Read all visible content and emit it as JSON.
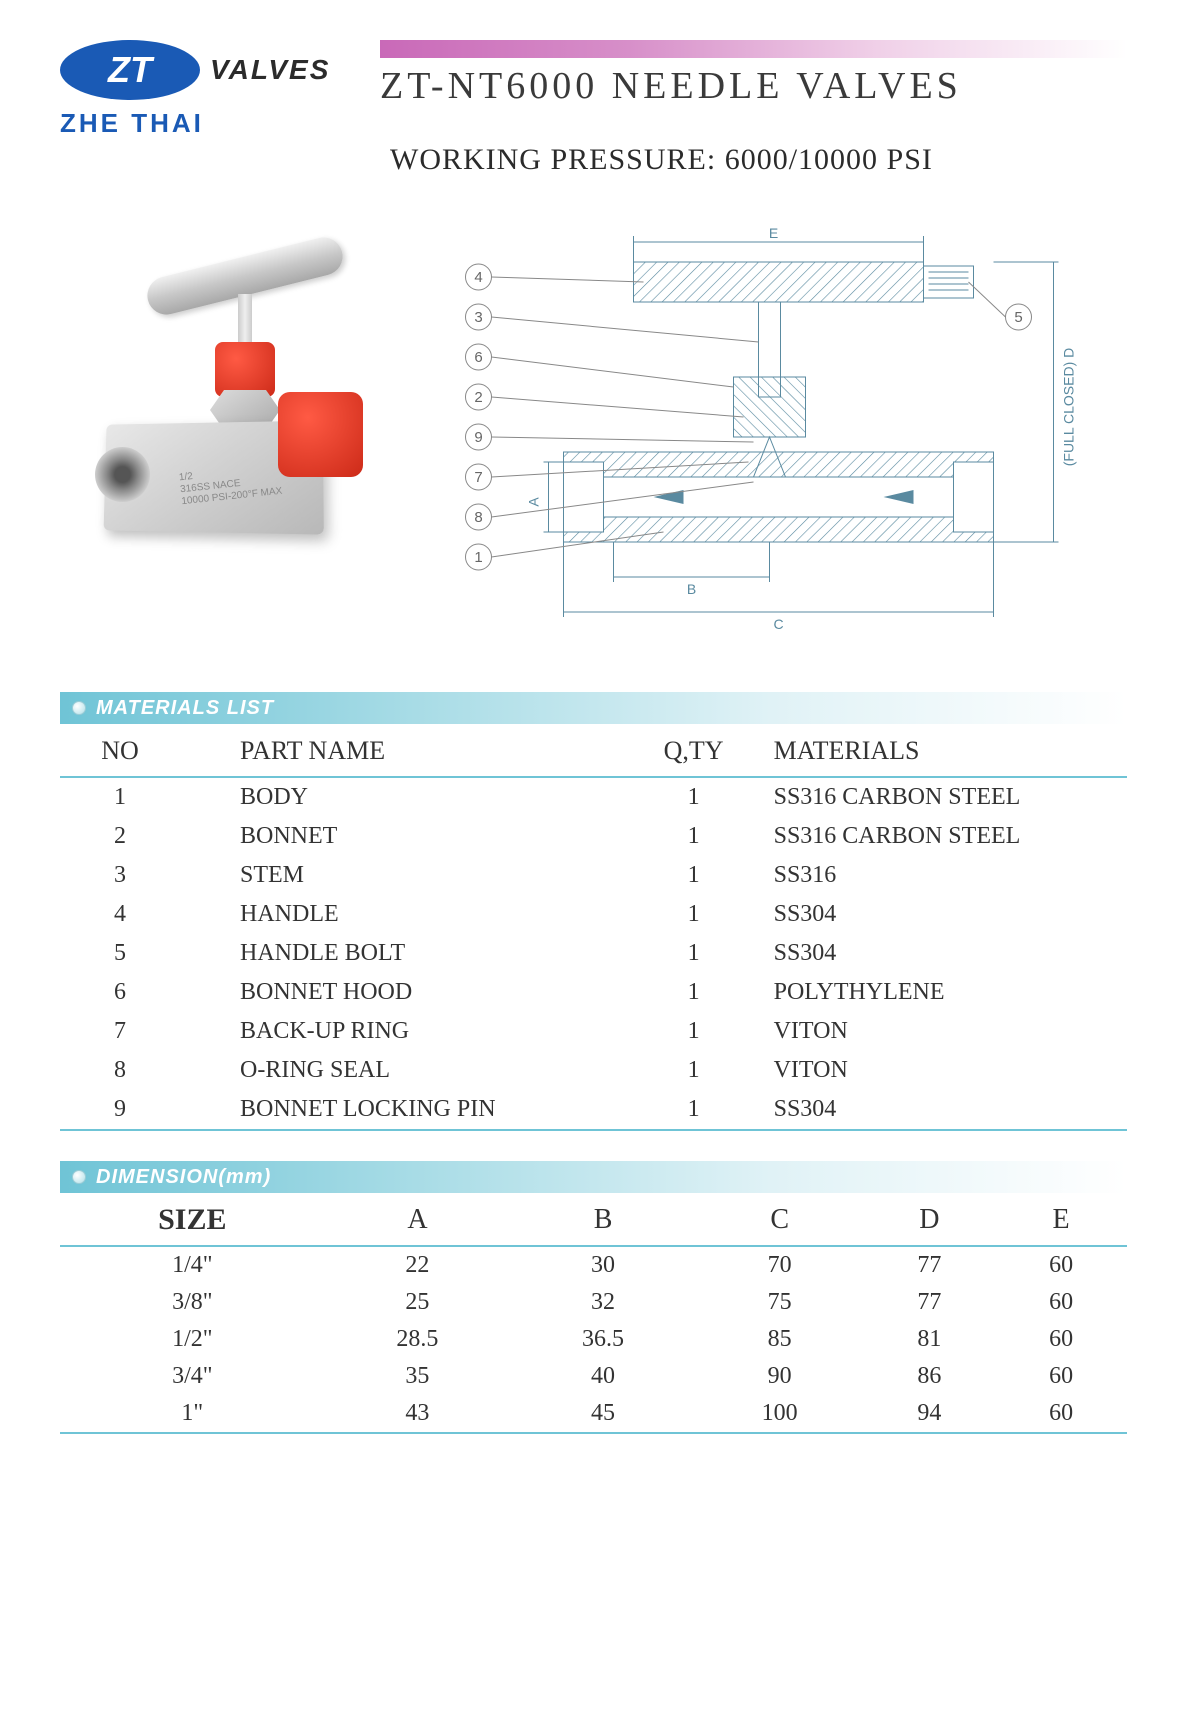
{
  "logo": {
    "mark_text": "ZT",
    "word": "VALVES",
    "company": "ZHE THAI"
  },
  "title": "ZT-NT6000  NEEDLE  VALVES",
  "subtitle": "WORKING  PRESSURE:   6000/10000 PSI",
  "photo_markings": {
    "line1": "1/2",
    "line2": "316SS  NACE",
    "line3": "10000 PSI-200°F MAX"
  },
  "diagram": {
    "callouts": [
      "4",
      "3",
      "6",
      "2",
      "9",
      "7",
      "8",
      "1",
      "5"
    ],
    "dim_labels": [
      "A",
      "B",
      "C",
      "D",
      "E"
    ],
    "d_note": "(FULL CLOSED)  D"
  },
  "materials_section": {
    "header": "MATERIALS LIST",
    "columns": [
      "NO",
      "PART NAME",
      "Q,TY",
      "MATERIALS"
    ],
    "rows": [
      [
        "1",
        "BODY",
        "1",
        "SS316  CARBON STEEL"
      ],
      [
        "2",
        "BONNET",
        "1",
        "SS316  CARBON STEEL"
      ],
      [
        "3",
        "STEM",
        "1",
        "SS316"
      ],
      [
        "4",
        "HANDLE",
        "1",
        "SS304"
      ],
      [
        "5",
        "HANDLE BOLT",
        "1",
        "SS304"
      ],
      [
        "6",
        "BONNET HOOD",
        "1",
        "POLYTHYLENE"
      ],
      [
        "7",
        "BACK-UP RING",
        "1",
        "VITON"
      ],
      [
        "8",
        "O-RING SEAL",
        "1",
        "VITON"
      ],
      [
        "9",
        "BONNET LOCKING PIN",
        "1",
        "SS304"
      ]
    ]
  },
  "dimension_section": {
    "header": "DIMENSION(mm)",
    "columns": [
      "SIZE",
      "A",
      "B",
      "C",
      "D",
      "E"
    ],
    "rows": [
      [
        "1/4\"",
        "22",
        "30",
        "70",
        "77",
        "60"
      ],
      [
        "3/8\"",
        "25",
        "32",
        "75",
        "77",
        "60"
      ],
      [
        "1/2\"",
        "28.5",
        "36.5",
        "85",
        "81",
        "60"
      ],
      [
        "3/4\"",
        "35",
        "40",
        "90",
        "86",
        "60"
      ],
      [
        "1\"",
        "43",
        "45",
        "100",
        "94",
        "60"
      ]
    ]
  },
  "colors": {
    "brand_blue": "#1a5ab5",
    "gradient_pink_start": "#c969b8",
    "section_teal": "#6fc4d6",
    "red_cap": "#e53a28",
    "diagram_line": "#5a8aa0"
  }
}
